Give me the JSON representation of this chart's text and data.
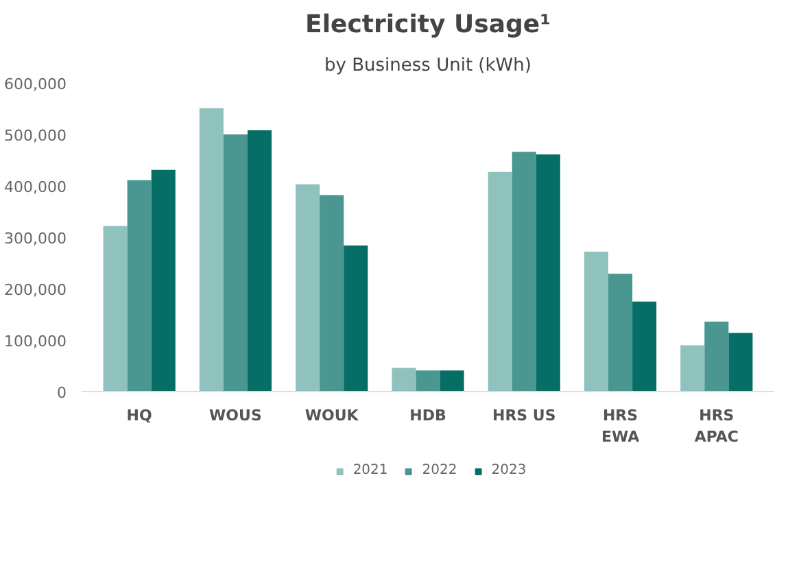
{
  "chart_data": {
    "type": "bar",
    "title": "Electricity Usage¹",
    "subtitle": "by Business Unit (kWh)",
    "categories": [
      "HQ",
      "WOUS",
      "WOUK",
      "HDB",
      "HRS US",
      "HRS\nEWA",
      "HRS\nAPAC"
    ],
    "series": [
      {
        "name": "2021",
        "color": "#8fc1bd",
        "values": [
          322000,
          551000,
          403000,
          46000,
          427000,
          272000,
          90000
        ]
      },
      {
        "name": "2022",
        "color": "#4a9690",
        "values": [
          411000,
          500000,
          382000,
          41000,
          466000,
          229000,
          136000
        ]
      },
      {
        "name": "2023",
        "color": "#076e66",
        "values": [
          431000,
          508000,
          284000,
          41000,
          461000,
          175000,
          114000
        ]
      }
    ],
    "ylim": [
      0,
      600000
    ],
    "yticks": [
      {
        "value": 0,
        "label": "0"
      },
      {
        "value": 100000,
        "label": "100,000"
      },
      {
        "value": 200000,
        "label": "200,000"
      },
      {
        "value": 300000,
        "label": "300,000"
      },
      {
        "value": 400000,
        "label": "400,000"
      },
      {
        "value": 500000,
        "label": "500,000"
      },
      {
        "value": 600000,
        "label": "600,000"
      }
    ],
    "grid": false,
    "legend": "bottom"
  }
}
